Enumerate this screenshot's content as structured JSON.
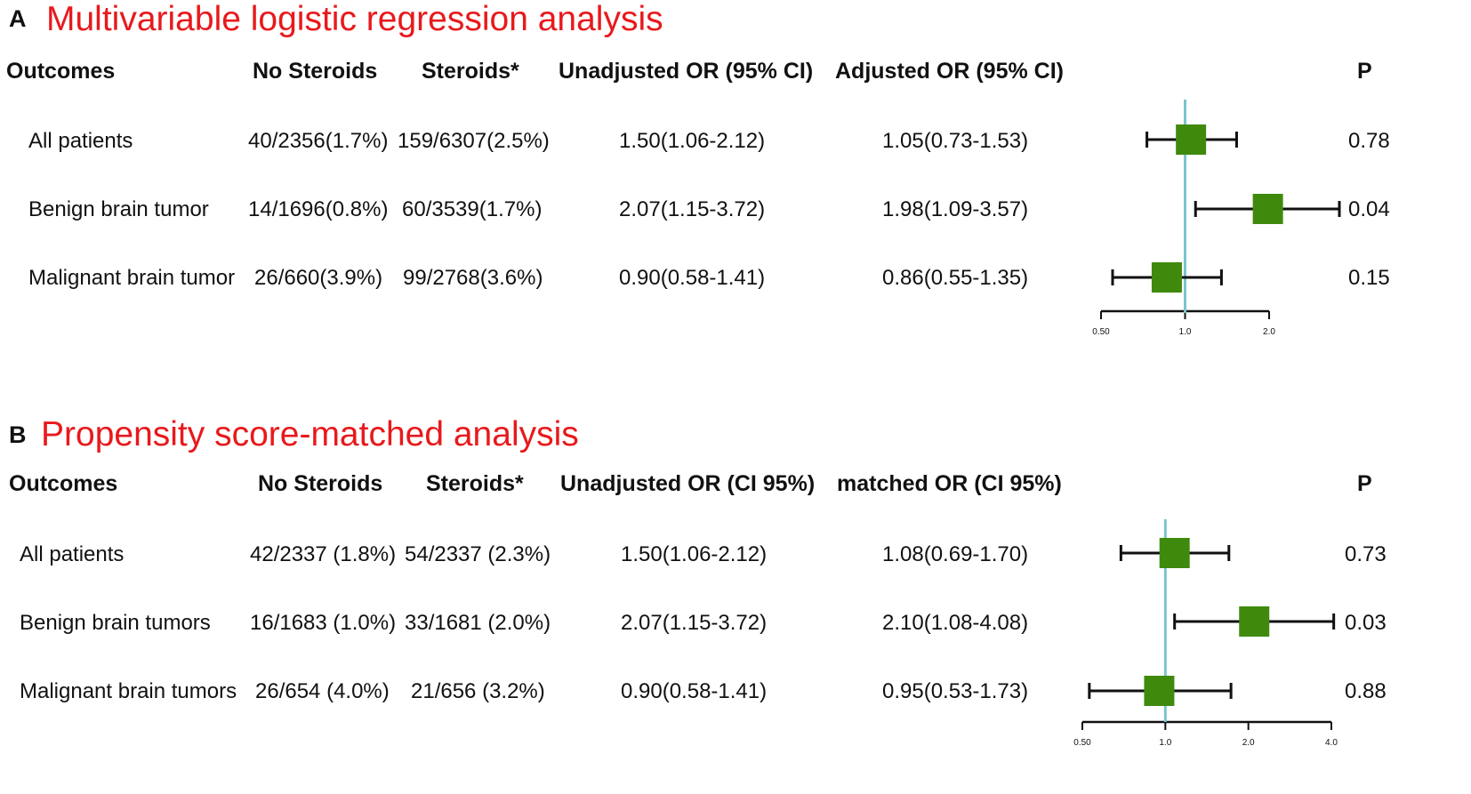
{
  "panels": [
    {
      "letter": "A",
      "title": "Multivariable logistic regression analysis",
      "headers": {
        "outcomes": "Outcomes",
        "no_steroids": "No Steroids",
        "steroids": "Steroids*",
        "unadjusted": "Unadjusted OR (95% CI)",
        "adjusted": "Adjusted OR (95% CI)",
        "p": "P"
      },
      "rows": [
        {
          "outcome": "All patients",
          "no_steroids": "40/2356(1.7%)",
          "steroids": "159/6307(2.5%)",
          "unadjusted": "1.50(1.06-2.12)",
          "adjusted": "1.05(0.73-1.53)",
          "p": "0.78"
        },
        {
          "outcome": "Benign brain tumor",
          "no_steroids": "14/1696(0.8%)",
          "steroids": "60/3539(1.7%)",
          "unadjusted": "2.07(1.15-3.72)",
          "adjusted": "1.98(1.09-3.57)",
          "p": "0.04"
        },
        {
          "outcome": "Malignant brain tumor",
          "no_steroids": "26/660(3.9%)",
          "steroids": "99/2768(3.6%)",
          "unadjusted": "0.90(0.58-1.41)",
          "adjusted": "0.86(0.55-1.35)",
          "p": "0.15"
        }
      ]
    },
    {
      "letter": "B",
      "title": "Propensity score-matched analysis",
      "headers": {
        "outcomes": "Outcomes",
        "no_steroids": "No Steroids",
        "steroids": "Steroids*",
        "unadjusted": "Unadjusted OR (CI 95%)",
        "adjusted": "matched OR (CI 95%)",
        "p": "P"
      },
      "rows": [
        {
          "outcome": "All patients",
          "no_steroids": "42/2337 (1.8%)",
          "steroids": "54/2337 (2.3%)",
          "unadjusted": "1.50(1.06-2.12)",
          "adjusted": "1.08(0.69-1.70)",
          "p": "0.73"
        },
        {
          "outcome": "Benign brain tumors",
          "no_steroids": "16/1683 (1.0%)",
          "steroids": "33/1681 (2.0%)",
          "unadjusted": "2.07(1.15-3.72)",
          "adjusted": "2.10(1.08-4.08)",
          "p": "0.03"
        },
        {
          "outcome": "Malignant brain tumors",
          "no_steroids": "26/654 (4.0%)",
          "steroids": "21/656 (3.2%)",
          "unadjusted": "0.90(0.58-1.41)",
          "adjusted": "0.95(0.53-1.73)",
          "p": "0.88"
        }
      ]
    }
  ],
  "chart_data": [
    {
      "type": "scatter",
      "title": "Multivariable logistic regression analysis",
      "scale": "log",
      "reference_line": 1.0,
      "ticks": [
        "0.50",
        "1.0",
        "2.0"
      ],
      "tick_values": [
        0.5,
        1.0,
        2.0
      ],
      "xlim": [
        0.5,
        2.0
      ],
      "categories": [
        "All patients",
        "Benign brain tumor",
        "Malignant brain tumor"
      ],
      "or": [
        1.05,
        1.98,
        0.86
      ],
      "ci_low": [
        0.73,
        1.09,
        0.55
      ],
      "ci_high": [
        1.53,
        3.57,
        1.35
      ],
      "colors": {
        "marker": "#3f8a0d",
        "reference": "#79c4d0",
        "line": "#111111"
      }
    },
    {
      "type": "scatter",
      "title": "Propensity score-matched analysis",
      "scale": "log",
      "reference_line": 1.0,
      "ticks": [
        "0.50",
        "1.0",
        "2.0",
        "4.0"
      ],
      "tick_values": [
        0.5,
        1.0,
        2.0,
        4.0
      ],
      "xlim": [
        0.5,
        4.0
      ],
      "categories": [
        "All patients",
        "Benign brain tumors",
        "Malignant brain tumors"
      ],
      "or": [
        1.08,
        2.1,
        0.95
      ],
      "ci_low": [
        0.69,
        1.08,
        0.53
      ],
      "ci_high": [
        1.7,
        4.08,
        1.73
      ],
      "colors": {
        "marker": "#3f8a0d",
        "reference": "#79c4d0",
        "line": "#111111"
      }
    }
  ]
}
